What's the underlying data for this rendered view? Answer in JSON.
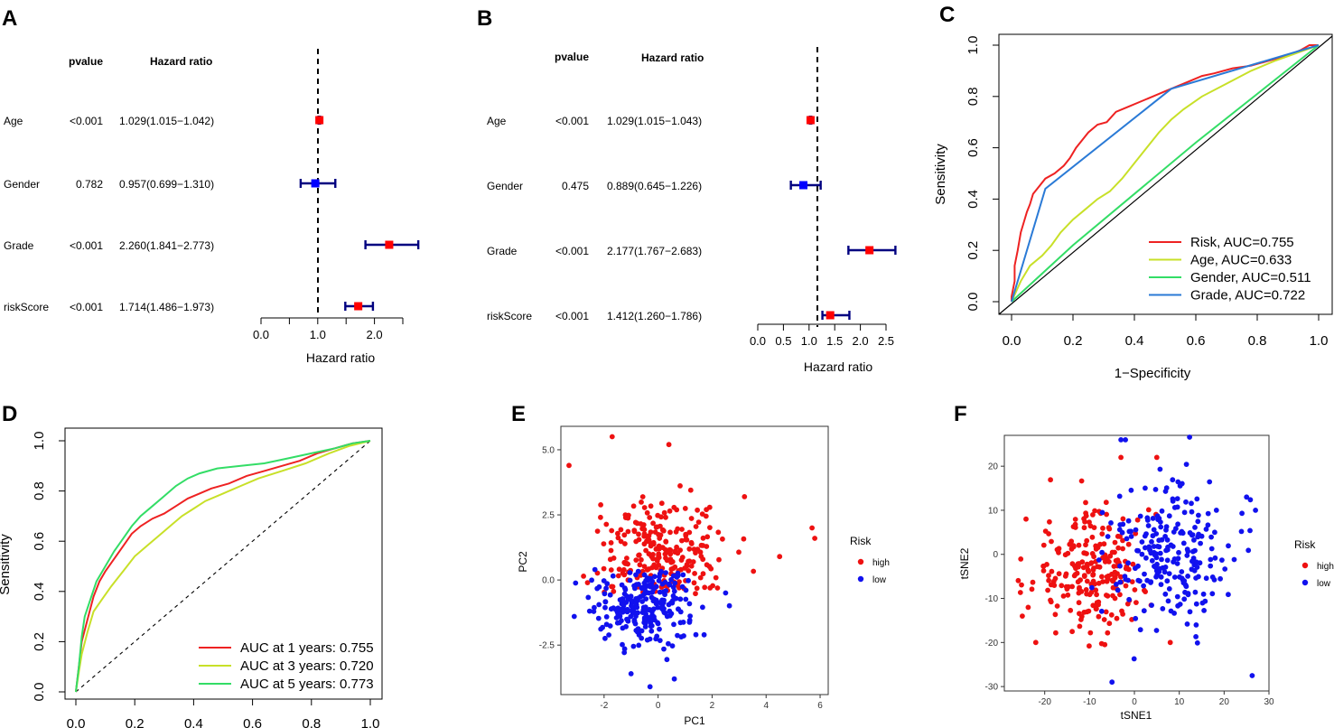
{
  "panels": {
    "A": {
      "letter": "A",
      "header_pvalue": "pvalue",
      "header_hr": "Hazard ratio",
      "rows": [
        {
          "name": "Age",
          "pvalue": "<0.001",
          "hr_text": "1.029(1.015−1.042)",
          "hr": 1.029,
          "lo": 1.015,
          "hi": 1.042,
          "color": "#ff0000"
        },
        {
          "name": "Gender",
          "pvalue": "0.782",
          "hr_text": "0.957(0.699−1.310)",
          "hr": 0.957,
          "lo": 0.699,
          "hi": 1.31,
          "color": "#0000ff"
        },
        {
          "name": "Grade",
          "pvalue": "<0.001",
          "hr_text": "2.260(1.841−2.773)",
          "hr": 2.26,
          "lo": 1.841,
          "hi": 2.773,
          "color": "#ff0000"
        },
        {
          "name": "riskScore",
          "pvalue": "<0.001",
          "hr_text": "1.714(1.486−1.973)",
          "hr": 1.714,
          "lo": 1.486,
          "hi": 1.973,
          "color": "#ff0000"
        }
      ],
      "xlabel": "Hazard ratio",
      "ticks": [
        0,
        0.5,
        1,
        1.5,
        2,
        2.5
      ],
      "tick_labels": [
        "0.0",
        "",
        "1.0",
        "",
        "2.0",
        ""
      ],
      "xlim": [
        0,
        2.5
      ]
    },
    "B": {
      "letter": "B",
      "header_pvalue": "pvalue",
      "header_hr": "Hazard ratio",
      "rows": [
        {
          "name": "Age",
          "pvalue": "<0.001",
          "hr_text": "1.029(1.015−1.043)",
          "hr": 1.029,
          "lo": 1.015,
          "hi": 1.043,
          "color": "#ff0000"
        },
        {
          "name": "Gender",
          "pvalue": "0.475",
          "hr_text": "0.889(0.645−1.226)",
          "hr": 0.889,
          "lo": 0.645,
          "hi": 1.226,
          "color": "#0000ff"
        },
        {
          "name": "Grade",
          "pvalue": "<0.001",
          "hr_text": "2.177(1.767−2.683)",
          "hr": 2.177,
          "lo": 1.767,
          "hi": 2.683,
          "color": "#ff0000"
        },
        {
          "name": "riskScore",
          "pvalue": "<0.001",
          "hr_text": "1.412(1.260−1.786)",
          "hr": 1.412,
          "lo": 1.26,
          "hi": 1.786,
          "color": "#ff0000"
        }
      ],
      "xlabel": "Hazard ratio",
      "ticks": [
        0,
        0.5,
        1,
        1.5,
        2,
        2.5
      ],
      "tick_labels": [
        "0.0",
        "0.5",
        "1.0",
        "1.5",
        "2.0",
        "2.5"
      ],
      "xlim": [
        0,
        2.5
      ]
    },
    "C": {
      "letter": "C",
      "xlabel": "1−Specificity",
      "ylabel": "Sensitivity",
      "ticks": [
        "0.0",
        "0.2",
        "0.4",
        "0.6",
        "0.8",
        "1.0"
      ],
      "legend": [
        {
          "label": "Risk, AUC=0.755",
          "color": "#ee2222"
        },
        {
          "label": "Age, AUC=0.633",
          "color": "#c8e028"
        },
        {
          "label": "Gender, AUC=0.511",
          "color": "#33dd66"
        },
        {
          "label": "Grade, AUC=0.722",
          "color": "#2a7ad6"
        }
      ]
    },
    "D": {
      "letter": "D",
      "ylabel": "Sensitivity",
      "ticks": [
        "0.0",
        "0.2",
        "0.4",
        "0.6",
        "0.8",
        "1.0"
      ],
      "legend": [
        {
          "label": "AUC at 1 years: 0.755",
          "color": "#ee2222"
        },
        {
          "label": "AUC at 3 years: 0.720",
          "color": "#c8e028"
        },
        {
          "label": "AUC at 5 years: 0.773",
          "color": "#33dd66"
        }
      ]
    },
    "E": {
      "letter": "E",
      "xlabel": "PC1",
      "ylabel": "PC2",
      "xticks": [
        "-2",
        "0",
        "2",
        "4",
        "6"
      ],
      "yticks": [
        "-2.5",
        "0.0",
        "2.5",
        "5.0"
      ],
      "legend_title": "Risk",
      "legend": [
        {
          "label": "high",
          "color": "#ee1111"
        },
        {
          "label": "low",
          "color": "#1111ee"
        }
      ]
    },
    "F": {
      "letter": "F",
      "xlabel": "tSNE1",
      "ylabel": "tSNE2",
      "xticks": [
        "-20",
        "-10",
        "0",
        "10",
        "20",
        "30"
      ],
      "yticks": [
        "-30",
        "-20",
        "-10",
        "0",
        "10",
        "20"
      ],
      "legend_title": "Risk",
      "legend": [
        {
          "label": "high",
          "color": "#ee1111"
        },
        {
          "label": "low",
          "color": "#1111ee"
        }
      ]
    }
  },
  "chart_data": [
    {
      "type": "forest",
      "title": "A",
      "xlabel": "Hazard ratio",
      "xlim": [
        0,
        2.5
      ],
      "reference_line": 1.0,
      "categories": [
        "Age",
        "Gender",
        "Grade",
        "riskScore"
      ],
      "hr": [
        1.029,
        0.957,
        2.26,
        1.714
      ],
      "lower": [
        1.015,
        0.699,
        1.841,
        1.486
      ],
      "upper": [
        1.042,
        1.31,
        2.773,
        1.973
      ],
      "pvalues": [
        "<0.001",
        "0.782",
        "<0.001",
        "<0.001"
      ]
    },
    {
      "type": "forest",
      "title": "B",
      "xlabel": "Hazard ratio",
      "xlim": [
        0,
        2.5
      ],
      "reference_line": 1.0,
      "categories": [
        "Age",
        "Gender",
        "Grade",
        "riskScore"
      ],
      "hr": [
        1.029,
        0.889,
        2.177,
        1.412
      ],
      "lower": [
        1.015,
        0.645,
        1.767,
        1.26
      ],
      "upper": [
        1.043,
        1.226,
        2.683,
        1.786
      ],
      "pvalues": [
        "<0.001",
        "0.475",
        "<0.001",
        "<0.001"
      ]
    },
    {
      "type": "line",
      "title": "C",
      "xlabel": "1−Specificity",
      "ylabel": "Sensitivity",
      "xlim": [
        0,
        1
      ],
      "ylim": [
        0,
        1
      ],
      "series": [
        {
          "name": "Risk, AUC=0.755",
          "color": "#ee2222",
          "points": [
            [
              0,
              0
            ],
            [
              0,
              0.02
            ],
            [
              0.01,
              0.08
            ],
            [
              0.01,
              0.14
            ],
            [
              0.02,
              0.2
            ],
            [
              0.03,
              0.27
            ],
            [
              0.04,
              0.31
            ],
            [
              0.05,
              0.35
            ],
            [
              0.06,
              0.38
            ],
            [
              0.07,
              0.42
            ],
            [
              0.09,
              0.45
            ],
            [
              0.11,
              0.48
            ],
            [
              0.14,
              0.5
            ],
            [
              0.17,
              0.53
            ],
            [
              0.19,
              0.56
            ],
            [
              0.21,
              0.6
            ],
            [
              0.23,
              0.63
            ],
            [
              0.25,
              0.66
            ],
            [
              0.28,
              0.69
            ],
            [
              0.31,
              0.7
            ],
            [
              0.34,
              0.74
            ],
            [
              0.38,
              0.76
            ],
            [
              0.42,
              0.78
            ],
            [
              0.46,
              0.8
            ],
            [
              0.5,
              0.82
            ],
            [
              0.54,
              0.84
            ],
            [
              0.58,
              0.86
            ],
            [
              0.62,
              0.88
            ],
            [
              0.66,
              0.89
            ],
            [
              0.72,
              0.91
            ],
            [
              0.78,
              0.92
            ],
            [
              0.84,
              0.94
            ],
            [
              0.9,
              0.96
            ],
            [
              0.94,
              0.98
            ],
            [
              0.97,
              1
            ],
            [
              1,
              1
            ]
          ]
        },
        {
          "name": "Age, AUC=0.633",
          "color": "#c8e028",
          "points": [
            [
              0,
              0
            ],
            [
              0.03,
              0.08
            ],
            [
              0.06,
              0.14
            ],
            [
              0.1,
              0.18
            ],
            [
              0.13,
              0.22
            ],
            [
              0.16,
              0.27
            ],
            [
              0.2,
              0.32
            ],
            [
              0.24,
              0.36
            ],
            [
              0.28,
              0.4
            ],
            [
              0.32,
              0.43
            ],
            [
              0.36,
              0.48
            ],
            [
              0.4,
              0.54
            ],
            [
              0.44,
              0.6
            ],
            [
              0.48,
              0.66
            ],
            [
              0.52,
              0.71
            ],
            [
              0.56,
              0.75
            ],
            [
              0.62,
              0.8
            ],
            [
              0.7,
              0.85
            ],
            [
              0.78,
              0.9
            ],
            [
              0.86,
              0.94
            ],
            [
              0.93,
              0.97
            ],
            [
              1,
              1
            ]
          ]
        },
        {
          "name": "Gender, AUC=0.511",
          "color": "#33dd66",
          "points": [
            [
              0,
              0
            ],
            [
              0.2,
              0.22
            ],
            [
              0.4,
              0.42
            ],
            [
              0.6,
              0.62
            ],
            [
              0.8,
              0.81
            ],
            [
              1,
              1
            ]
          ]
        },
        {
          "name": "Grade, AUC=0.722",
          "color": "#2a7ad6",
          "points": [
            [
              0,
              0
            ],
            [
              0.11,
              0.44
            ],
            [
              0.52,
              0.83
            ],
            [
              1,
              1
            ]
          ]
        }
      ]
    },
    {
      "type": "line",
      "title": "D",
      "ylabel": "Sensitivity",
      "xlim": [
        0,
        1
      ],
      "ylim": [
        0,
        1
      ],
      "series": [
        {
          "name": "AUC at 1 years: 0.755",
          "color": "#ee2222",
          "points": [
            [
              0,
              0
            ],
            [
              0.01,
              0.1
            ],
            [
              0.02,
              0.2
            ],
            [
              0.04,
              0.29
            ],
            [
              0.06,
              0.38
            ],
            [
              0.08,
              0.44
            ],
            [
              0.1,
              0.48
            ],
            [
              0.13,
              0.53
            ],
            [
              0.16,
              0.58
            ],
            [
              0.19,
              0.63
            ],
            [
              0.22,
              0.66
            ],
            [
              0.26,
              0.69
            ],
            [
              0.3,
              0.71
            ],
            [
              0.34,
              0.74
            ],
            [
              0.38,
              0.77
            ],
            [
              0.42,
              0.79
            ],
            [
              0.46,
              0.81
            ],
            [
              0.52,
              0.83
            ],
            [
              0.58,
              0.86
            ],
            [
              0.64,
              0.88
            ],
            [
              0.7,
              0.9
            ],
            [
              0.76,
              0.92
            ],
            [
              0.82,
              0.95
            ],
            [
              0.88,
              0.97
            ],
            [
              0.94,
              0.99
            ],
            [
              1,
              1
            ]
          ]
        },
        {
          "name": "AUC at 3 years: 0.720",
          "color": "#c8e028",
          "points": [
            [
              0,
              0
            ],
            [
              0.01,
              0.08
            ],
            [
              0.02,
              0.15
            ],
            [
              0.04,
              0.24
            ],
            [
              0.06,
              0.32
            ],
            [
              0.09,
              0.37
            ],
            [
              0.12,
              0.42
            ],
            [
              0.16,
              0.48
            ],
            [
              0.2,
              0.54
            ],
            [
              0.24,
              0.58
            ],
            [
              0.28,
              0.62
            ],
            [
              0.32,
              0.66
            ],
            [
              0.36,
              0.7
            ],
            [
              0.4,
              0.73
            ],
            [
              0.44,
              0.76
            ],
            [
              0.5,
              0.79
            ],
            [
              0.56,
              0.82
            ],
            [
              0.62,
              0.85
            ],
            [
              0.7,
              0.88
            ],
            [
              0.78,
              0.91
            ],
            [
              0.86,
              0.95
            ],
            [
              0.93,
              0.98
            ],
            [
              1,
              1
            ]
          ]
        },
        {
          "name": "AUC at 5 years: 0.773",
          "color": "#33dd66",
          "points": [
            [
              0,
              0
            ],
            [
              0.01,
              0.1
            ],
            [
              0.02,
              0.22
            ],
            [
              0.03,
              0.3
            ],
            [
              0.05,
              0.37
            ],
            [
              0.07,
              0.44
            ],
            [
              0.1,
              0.5
            ],
            [
              0.13,
              0.56
            ],
            [
              0.16,
              0.61
            ],
            [
              0.19,
              0.66
            ],
            [
              0.22,
              0.7
            ],
            [
              0.26,
              0.74
            ],
            [
              0.3,
              0.78
            ],
            [
              0.34,
              0.82
            ],
            [
              0.38,
              0.85
            ],
            [
              0.42,
              0.87
            ],
            [
              0.48,
              0.89
            ],
            [
              0.56,
              0.9
            ],
            [
              0.64,
              0.91
            ],
            [
              0.72,
              0.93
            ],
            [
              0.8,
              0.95
            ],
            [
              0.88,
              0.97
            ],
            [
              0.94,
              0.99
            ],
            [
              1,
              1
            ]
          ]
        }
      ]
    },
    {
      "type": "scatter",
      "title": "E",
      "xlabel": "PC1",
      "ylabel": "PC2",
      "xlim": [
        -3.6,
        6.3
      ],
      "ylim": [
        -4.4,
        5.9
      ],
      "series": [
        {
          "name": "high",
          "color": "#ee1111",
          "center": [
            0.2,
            1.1
          ],
          "spread": [
            1.6,
            1.4
          ],
          "n": 240,
          "outliers": [
            [
              -3.3,
              4.4
            ],
            [
              -1.7,
              5.5
            ],
            [
              0.4,
              5.2
            ],
            [
              5.7,
              2.0
            ],
            [
              5.8,
              1.6
            ],
            [
              3.2,
              3.2
            ],
            [
              4.5,
              0.9
            ]
          ]
        },
        {
          "name": "low",
          "color": "#1111ee",
          "center": [
            -0.5,
            -0.9
          ],
          "spread": [
            1.2,
            1.0
          ],
          "n": 250,
          "outliers": [
            [
              -0.3,
              -4.1
            ],
            [
              0.6,
              -3.8
            ],
            [
              -1.0,
              -3.6
            ],
            [
              2.5,
              -0.5
            ]
          ]
        }
      ]
    },
    {
      "type": "scatter",
      "title": "F",
      "xlabel": "tSNE1",
      "ylabel": "tSNE2",
      "xlim": [
        -29,
        30
      ],
      "ylim": [
        -31,
        27
      ],
      "series": [
        {
          "name": "high",
          "color": "#ee1111",
          "center": [
            -10,
            -4
          ],
          "spread": [
            9,
            9
          ],
          "n": 230,
          "outliers": [
            [
              -25,
              -14
            ],
            [
              -22,
              -20
            ],
            [
              8,
              -20
            ],
            [
              -3,
              22
            ],
            [
              5,
              22
            ]
          ]
        },
        {
          "name": "low",
          "color": "#1111ee",
          "center": [
            8,
            0
          ],
          "spread": [
            9,
            11
          ],
          "n": 230,
          "outliers": [
            [
              -5,
              -29
            ],
            [
              -3,
              26
            ],
            [
              -2,
              26
            ],
            [
              27,
              10
            ],
            [
              25,
              13
            ]
          ]
        }
      ]
    }
  ]
}
